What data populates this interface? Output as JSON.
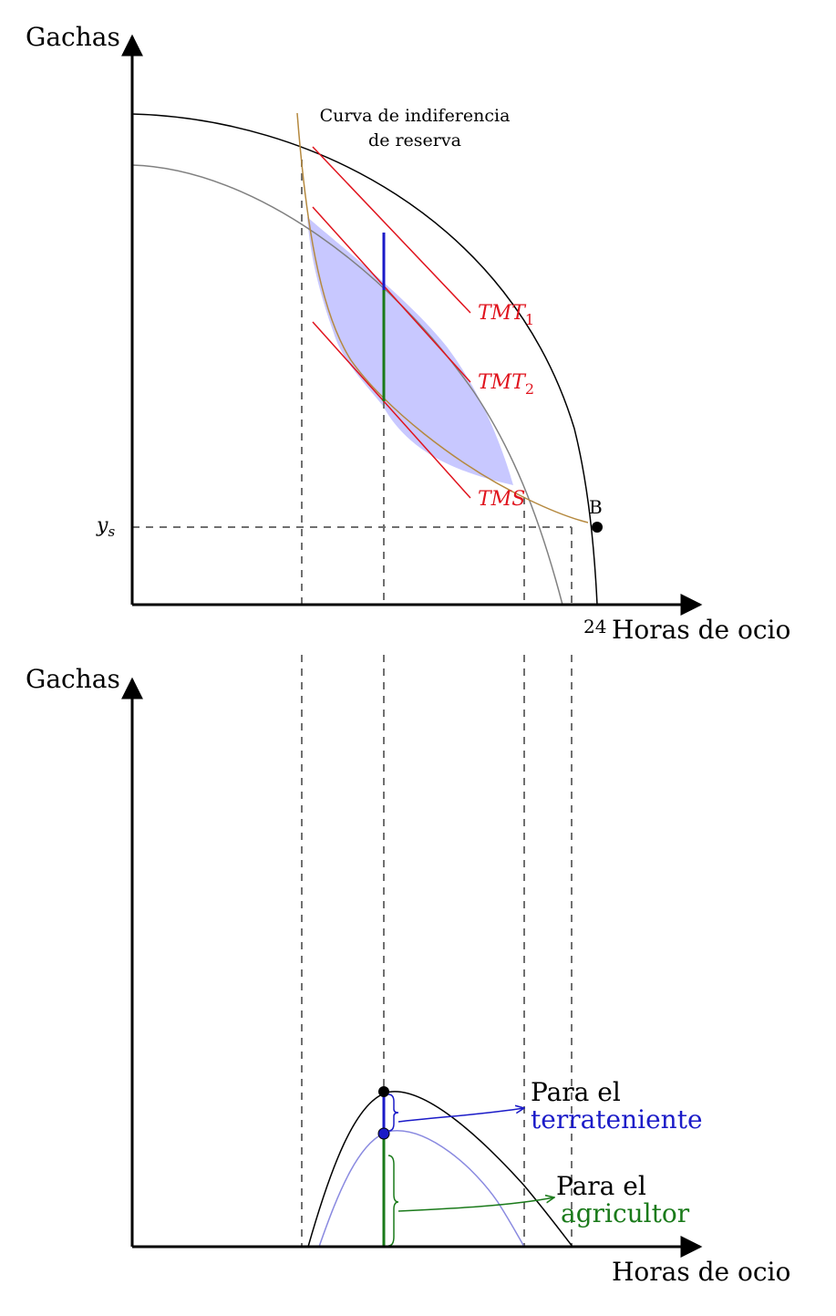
{
  "top": {
    "y_axis_label": "Gachas",
    "x_axis_label": "Horas de ocio",
    "x_max_label": "24",
    "reserve_curve_label_line1": "Curva de indiferencia",
    "reserve_curve_label_line2": "de reserva",
    "tmt1_label": "TMT",
    "tmt1_sub": "1",
    "tmt2_label": "TMT",
    "tmt2_sub": "2",
    "tms_label": "TMS",
    "point_b_label": "B",
    "ys_label": "y",
    "ys_sub": "s"
  },
  "bottom": {
    "y_axis_label": "Gachas",
    "x_axis_label": "Horas de ocio",
    "landlord_label_line1": "Para el",
    "landlord_label_line2": "terrateniente",
    "farmer_label_line1": "Para el",
    "farmer_label_line2": "agricultor"
  },
  "colors": {
    "axis": "#000000",
    "frontier_outer": "#000000",
    "frontier_inner": "#808080",
    "indifference": "#b5893f",
    "tangent_lines": "#e0141e",
    "shaded_region": "#c8c8ff",
    "landlord": "#1b1bc8",
    "farmer": "#1a7a1a",
    "dashed": "#707070",
    "inner_surplus_curve": "#8a8ae0"
  }
}
